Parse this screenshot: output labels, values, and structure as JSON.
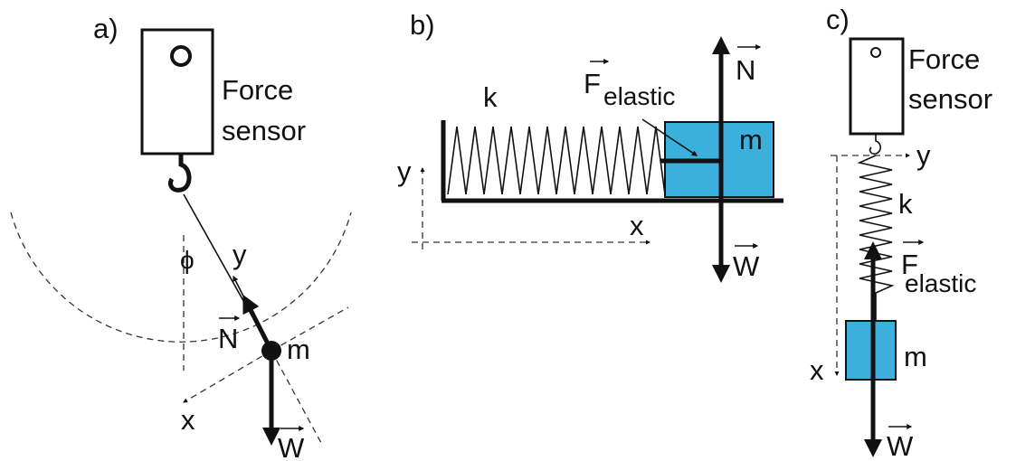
{
  "panels": [
    {
      "label": "a)",
      "sensor": [
        "Force",
        "sensor"
      ],
      "angle": "ϕ",
      "y_axis": "y",
      "normal": "N",
      "mass": "m",
      "x_axis": "x",
      "weight": "W"
    },
    {
      "label": "b)",
      "spring": "k",
      "force": "F",
      "force_sub": "elastic",
      "normal": "N",
      "mass": "m",
      "y_axis": "y",
      "x_axis": "x",
      "weight": "W"
    },
    {
      "label": "c)",
      "sensor": [
        "Force",
        "sensor"
      ],
      "y_axis": "y",
      "spring": "k",
      "force": "F",
      "force_sub": "elastic",
      "mass": "m",
      "x_axis": "x",
      "weight": "W"
    }
  ]
}
